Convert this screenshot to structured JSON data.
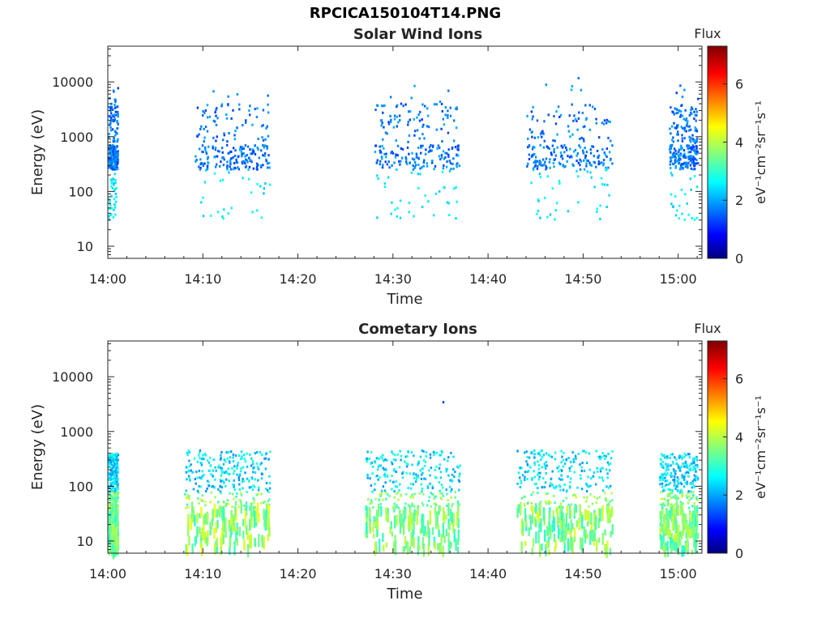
{
  "figure_title": "RPCICA150104T14.PNG",
  "colorbar": {
    "label": "Flux",
    "unit_text": "eV⁻¹cm⁻²sr⁻¹s⁻¹",
    "ticks": [
      "0",
      "2",
      "4",
      "6"
    ],
    "colormap": "jet",
    "range": [
      0,
      7.3
    ]
  },
  "chart_data": [
    {
      "type": "heatmap",
      "title": "Solar Wind Ions",
      "xlabel": "Time",
      "ylabel": "Energy (eV)",
      "x_ticks": [
        "14:00",
        "14:10",
        "14:20",
        "14:30",
        "14:40",
        "14:50",
        "15:00"
      ],
      "y_ticks": [
        "10",
        "100",
        "1000",
        "10000"
      ],
      "y_scale": "log",
      "xlim_minutes_after_1400": [
        0,
        62.5
      ],
      "ylim": [
        6,
        45000
      ],
      "bursts": [
        {
          "start": "14:00",
          "end": "14:01",
          "energy_range": [
            300,
            10000
          ],
          "peak_flux": 2.0
        },
        {
          "start": "14:09",
          "end": "14:17",
          "energy_range": [
            250,
            8000
          ],
          "peak_flux": 2.3
        },
        {
          "start": "14:28",
          "end": "14:37",
          "energy_range": [
            250,
            12000
          ],
          "peak_flux": 2.3
        },
        {
          "start": "14:44",
          "end": "14:53",
          "energy_range": [
            250,
            14000
          ],
          "peak_flux": 2.3
        },
        {
          "start": "14:59",
          "end": "15:02",
          "energy_range": [
            250,
            10000
          ],
          "peak_flux": 2.2
        }
      ]
    },
    {
      "type": "heatmap",
      "title": "Cometary Ions",
      "xlabel": "Time",
      "ylabel": "Energy (eV)",
      "x_ticks": [
        "14:00",
        "14:10",
        "14:20",
        "14:30",
        "14:40",
        "14:50",
        "15:00"
      ],
      "y_ticks": [
        "10",
        "100",
        "1000",
        "10000"
      ],
      "y_scale": "log",
      "xlim_minutes_after_1400": [
        0,
        62.5
      ],
      "ylim": [
        6,
        45000
      ],
      "bursts": [
        {
          "start": "14:00",
          "end": "14:01",
          "energy_range": [
            6,
            400
          ],
          "peak_flux": 4.0
        },
        {
          "start": "14:08",
          "end": "14:17",
          "energy_range": [
            6,
            450
          ],
          "peak_flux": 4.3
        },
        {
          "start": "14:27",
          "end": "14:37",
          "energy_range": [
            6,
            450
          ],
          "peak_flux": 4.0
        },
        {
          "start": "14:43",
          "end": "14:53",
          "energy_range": [
            6,
            450
          ],
          "peak_flux": 4.2
        },
        {
          "start": "14:58",
          "end": "15:02",
          "energy_range": [
            6,
            400
          ],
          "peak_flux": 4.0
        }
      ]
    }
  ]
}
